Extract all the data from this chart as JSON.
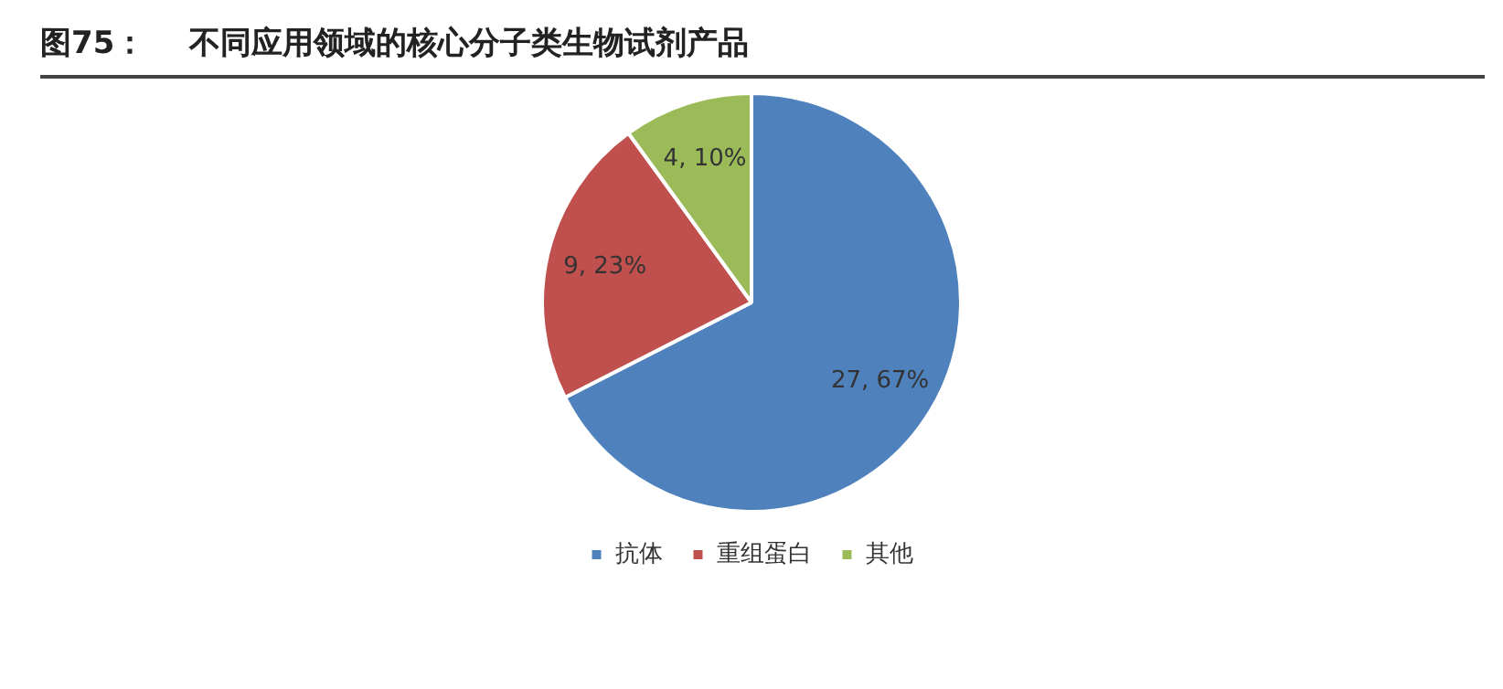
{
  "chart_data": {
    "type": "pie",
    "title": "图75：    不同应用领域的核心分子类生物试剂产品",
    "categories": [
      "抗体",
      "重组蛋白",
      "其他"
    ],
    "values": [
      27,
      9,
      4
    ],
    "colors": [
      "#4f81bd",
      "#c0504d",
      "#9bbb59"
    ],
    "value_labels": [
      "27, 67%",
      "9, 23%",
      "4, 10%"
    ],
    "legend": "bottom"
  }
}
